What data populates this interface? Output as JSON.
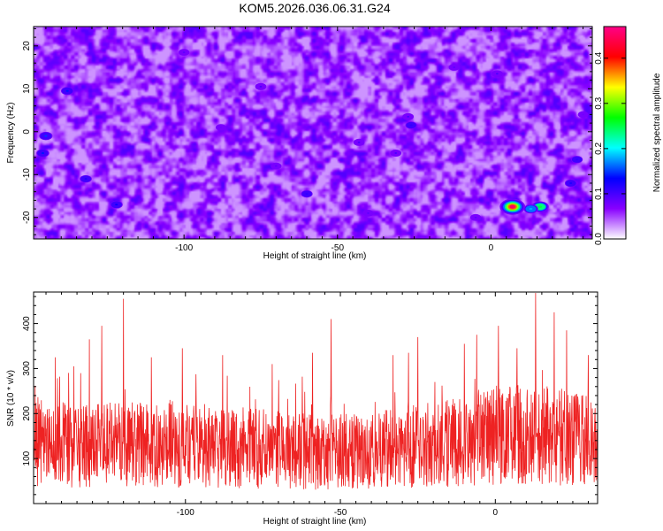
{
  "title": "KOM5.2026.036.06.31.G24",
  "chart_data": [
    {
      "type": "heatmap",
      "xlabel": "Height of straight line (km)",
      "ylabel": "Frequency (Hz)",
      "xlim": [
        -149,
        33
      ],
      "ylim": [
        -25,
        24.5
      ],
      "x_ticks": [
        -100,
        -50,
        0
      ],
      "x_tick_labels": [
        "-100",
        "-50",
        "0"
      ],
      "y_ticks": [
        -20,
        -10,
        0,
        10,
        20
      ],
      "y_tick_labels": [
        "-20",
        "-10",
        "0",
        "10",
        "20"
      ],
      "colorbar": {
        "label": "Normalized spectral amplitude",
        "range": [
          0,
          0.47
        ],
        "ticks": [
          0.0,
          0.1,
          0.2,
          0.3,
          0.4
        ],
        "tick_labels": [
          "0.0",
          "0.1",
          "0.2",
          "0.3",
          "0.4"
        ],
        "colors": [
          "#ffffff",
          "#8800ff",
          "#0000ff",
          "#00ffff",
          "#00ff00",
          "#ffff00",
          "#ff0000",
          "#ff0088"
        ]
      },
      "hotspots": [
        {
          "x": 7,
          "y": -17.5,
          "value": 0.45
        },
        {
          "x": 16,
          "y": -17.5,
          "value": 0.25
        },
        {
          "x": 13,
          "y": -18,
          "value": 0.18
        },
        {
          "x": -145,
          "y": -1,
          "value": 0.15
        },
        {
          "x": -146,
          "y": -5,
          "value": 0.14
        },
        {
          "x": -138,
          "y": 9.5,
          "value": 0.14
        },
        {
          "x": -122,
          "y": -17,
          "value": 0.13
        },
        {
          "x": -132,
          "y": -11,
          "value": 0.12
        },
        {
          "x": 26,
          "y": -12,
          "value": 0.12
        },
        {
          "x": 28,
          "y": -6.5,
          "value": 0.11
        },
        {
          "x": -26,
          "y": 1.5,
          "value": 0.11
        },
        {
          "x": -60,
          "y": -14.5,
          "value": 0.11
        },
        {
          "x": 2,
          "y": 13.5,
          "value": 0.1
        },
        {
          "x": -43,
          "y": -2.5,
          "value": 0.1
        },
        {
          "x": -75,
          "y": 10.5,
          "value": 0.1
        },
        {
          "x": -31,
          "y": -5,
          "value": 0.1
        },
        {
          "x": -27,
          "y": 3.5,
          "value": 0.1
        },
        {
          "x": -100,
          "y": 18.5,
          "value": 0.09
        },
        {
          "x": -12,
          "y": 15,
          "value": 0.09
        },
        {
          "x": -70,
          "y": -8,
          "value": 0.09
        },
        {
          "x": -40,
          "y": -19,
          "value": 0.09
        },
        {
          "x": -5,
          "y": -20,
          "value": 0.09
        },
        {
          "x": 30,
          "y": 4,
          "value": 0.08
        },
        {
          "x": -88,
          "y": 1,
          "value": 0.08
        }
      ]
    },
    {
      "type": "line",
      "xlabel": "Height of straight line (km)",
      "ylabel": "SNR (10 * v/v)",
      "xlim": [
        -149,
        33
      ],
      "ylim": [
        0,
        470
      ],
      "x_ticks": [
        -100,
        -50,
        0
      ],
      "x_tick_labels": [
        "-100",
        "-50",
        "0"
      ],
      "y_ticks": [
        100,
        200,
        300,
        400
      ],
      "y_tick_labels": [
        "100",
        "200",
        "300",
        "400"
      ],
      "line_color": "#ee2222",
      "x_step": 0.1,
      "baseline": 130,
      "peaks": [
        {
          "x": -142,
          "y": 325
        },
        {
          "x": -136,
          "y": 305
        },
        {
          "x": -131,
          "y": 365
        },
        {
          "x": -127,
          "y": 395
        },
        {
          "x": -120,
          "y": 455
        },
        {
          "x": -111,
          "y": 325
        },
        {
          "x": -101,
          "y": 345
        },
        {
          "x": -88,
          "y": 330
        },
        {
          "x": -72,
          "y": 310
        },
        {
          "x": -59,
          "y": 335
        },
        {
          "x": -53,
          "y": 410
        },
        {
          "x": -33,
          "y": 330
        },
        {
          "x": -28,
          "y": 335
        },
        {
          "x": -25,
          "y": 370
        },
        {
          "x": -10,
          "y": 355
        },
        {
          "x": -6,
          "y": 375
        },
        {
          "x": 1,
          "y": 395
        },
        {
          "x": 7,
          "y": 345
        },
        {
          "x": 13,
          "y": 468
        },
        {
          "x": 19,
          "y": 425
        },
        {
          "x": 23,
          "y": 385
        },
        {
          "x": 30,
          "y": 330
        }
      ]
    }
  ]
}
